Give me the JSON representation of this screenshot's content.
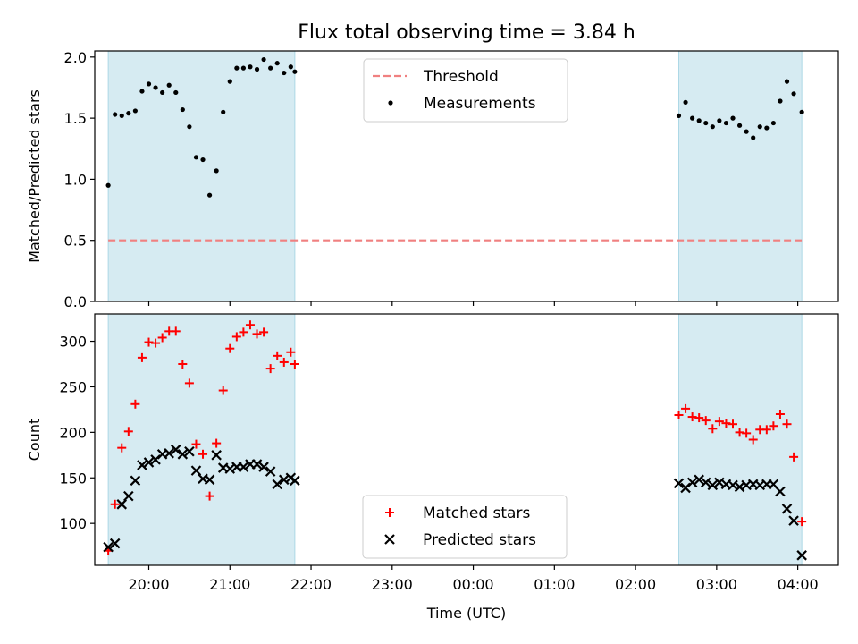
{
  "title": "Flux total observing time = 3.84 h",
  "colors": {
    "band": "#add8e6",
    "threshold": "#f08080",
    "measurement": "#000000",
    "matched": "#ff0000",
    "predicted": "#000000"
  },
  "chart_data": [
    {
      "type": "scatter",
      "panel": "top",
      "title": "",
      "xlabel": "",
      "ylabel": "Matched/Predicted stars",
      "xlim": [
        "19:20",
        "04:30"
      ],
      "ylim": [
        0,
        2.05
      ],
      "yticks": [
        0.0,
        0.5,
        1.0,
        1.5,
        2.0
      ],
      "ytick_labels": [
        "0.0",
        "0.5",
        "1.0",
        "1.5",
        "2.0"
      ],
      "grid": false,
      "legend": {
        "position": "top-center",
        "entries": [
          "Threshold",
          "Measurements"
        ]
      },
      "observing_windows": [
        [
          "19:30",
          "21:48"
        ],
        [
          "02:32",
          "04:03"
        ]
      ],
      "threshold": {
        "name": "Threshold",
        "value": 0.5,
        "x_range": [
          "19:30",
          "04:03"
        ]
      },
      "series": [
        {
          "name": "Measurements",
          "points": [
            [
              "19:30",
              0.95
            ],
            [
              "19:35",
              1.53
            ],
            [
              "19:40",
              1.52
            ],
            [
              "19:45",
              1.54
            ],
            [
              "19:50",
              1.56
            ],
            [
              "19:55",
              1.72
            ],
            [
              "20:00",
              1.78
            ],
            [
              "20:05",
              1.75
            ],
            [
              "20:10",
              1.71
            ],
            [
              "20:15",
              1.77
            ],
            [
              "20:20",
              1.71
            ],
            [
              "20:25",
              1.57
            ],
            [
              "20:30",
              1.43
            ],
            [
              "20:35",
              1.18
            ],
            [
              "20:40",
              1.16
            ],
            [
              "20:45",
              0.87
            ],
            [
              "20:50",
              1.07
            ],
            [
              "20:55",
              1.55
            ],
            [
              "21:00",
              1.8
            ],
            [
              "21:05",
              1.91
            ],
            [
              "21:10",
              1.91
            ],
            [
              "21:15",
              1.92
            ],
            [
              "21:20",
              1.9
            ],
            [
              "21:25",
              1.98
            ],
            [
              "21:30",
              1.91
            ],
            [
              "21:35",
              1.95
            ],
            [
              "21:40",
              1.87
            ],
            [
              "21:45",
              1.92
            ],
            [
              "21:48",
              1.88
            ],
            [
              "02:32",
              1.52
            ],
            [
              "02:37",
              1.63
            ],
            [
              "02:42",
              1.5
            ],
            [
              "02:47",
              1.48
            ],
            [
              "02:52",
              1.46
            ],
            [
              "02:57",
              1.43
            ],
            [
              "03:02",
              1.48
            ],
            [
              "03:07",
              1.46
            ],
            [
              "03:12",
              1.5
            ],
            [
              "03:17",
              1.44
            ],
            [
              "03:22",
              1.39
            ],
            [
              "03:27",
              1.34
            ],
            [
              "03:32",
              1.43
            ],
            [
              "03:37",
              1.42
            ],
            [
              "03:42",
              1.46
            ],
            [
              "03:47",
              1.64
            ],
            [
              "03:52",
              1.8
            ],
            [
              "03:57",
              1.7
            ],
            [
              "04:03",
              1.55
            ]
          ]
        }
      ]
    },
    {
      "type": "scatter",
      "panel": "bottom",
      "title": "",
      "xlabel": "Time (UTC)",
      "ylabel": "Count",
      "xlim": [
        "19:20",
        "04:30"
      ],
      "ylim": [
        54,
        330
      ],
      "yticks": [
        100,
        150,
        200,
        250,
        300
      ],
      "ytick_labels": [
        "100",
        "150",
        "200",
        "250",
        "300"
      ],
      "xticks": [
        "20:00",
        "21:00",
        "22:00",
        "23:00",
        "00:00",
        "01:00",
        "02:00",
        "03:00",
        "04:00"
      ],
      "grid": false,
      "legend": {
        "position": "bottom-center",
        "entries": [
          "Matched stars",
          "Predicted stars"
        ]
      },
      "observing_windows": [
        [
          "19:30",
          "21:48"
        ],
        [
          "02:32",
          "04:03"
        ]
      ],
      "series": [
        {
          "name": "Matched stars",
          "marker": "plus",
          "points": [
            [
              "19:30",
              70
            ],
            [
              "19:35",
              121
            ],
            [
              "19:40",
              183
            ],
            [
              "19:45",
              201
            ],
            [
              "19:50",
              231
            ],
            [
              "19:55",
              282
            ],
            [
              "20:00",
              299
            ],
            [
              "20:05",
              298
            ],
            [
              "20:10",
              304
            ],
            [
              "20:15",
              311
            ],
            [
              "20:20",
              311
            ],
            [
              "20:25",
              275
            ],
            [
              "20:30",
              254
            ],
            [
              "20:35",
              187
            ],
            [
              "20:40",
              176
            ],
            [
              "20:45",
              130
            ],
            [
              "20:50",
              188
            ],
            [
              "20:55",
              246
            ],
            [
              "21:00",
              292
            ],
            [
              "21:05",
              305
            ],
            [
              "21:10",
              310
            ],
            [
              "21:15",
              318
            ],
            [
              "21:20",
              308
            ],
            [
              "21:25",
              310
            ],
            [
              "21:30",
              270
            ],
            [
              "21:35",
              284
            ],
            [
              "21:40",
              277
            ],
            [
              "21:45",
              288
            ],
            [
              "21:48",
              275
            ],
            [
              "02:32",
              219
            ],
            [
              "02:37",
              226
            ],
            [
              "02:42",
              217
            ],
            [
              "02:47",
              216
            ],
            [
              "02:52",
              213
            ],
            [
              "02:57",
              204
            ],
            [
              "03:02",
              212
            ],
            [
              "03:07",
              210
            ],
            [
              "03:12",
              209
            ],
            [
              "03:17",
              200
            ],
            [
              "03:22",
              199
            ],
            [
              "03:27",
              192
            ],
            [
              "03:32",
              203
            ],
            [
              "03:37",
              203
            ],
            [
              "03:42",
              207
            ],
            [
              "03:47",
              220
            ],
            [
              "03:52",
              209
            ],
            [
              "03:57",
              173
            ],
            [
              "04:03",
              102
            ]
          ]
        },
        {
          "name": "Predicted stars",
          "marker": "x",
          "points": [
            [
              "19:30",
              74
            ],
            [
              "19:35",
              78
            ],
            [
              "19:40",
              121
            ],
            [
              "19:45",
              130
            ],
            [
              "19:50",
              147
            ],
            [
              "19:55",
              164
            ],
            [
              "20:00",
              167
            ],
            [
              "20:05",
              170
            ],
            [
              "20:10",
              176
            ],
            [
              "20:15",
              177
            ],
            [
              "20:20",
              181
            ],
            [
              "20:25",
              176
            ],
            [
              "20:30",
              179
            ],
            [
              "20:35",
              158
            ],
            [
              "20:40",
              149
            ],
            [
              "20:45",
              148
            ],
            [
              "20:50",
              175
            ],
            [
              "20:55",
              161
            ],
            [
              "21:00",
              160
            ],
            [
              "21:05",
              162
            ],
            [
              "21:10",
              162
            ],
            [
              "21:15",
              165
            ],
            [
              "21:20",
              165
            ],
            [
              "21:25",
              162
            ],
            [
              "21:30",
              157
            ],
            [
              "21:35",
              143
            ],
            [
              "21:40",
              148
            ],
            [
              "21:45",
              150
            ],
            [
              "21:48",
              147
            ],
            [
              "02:32",
              144
            ],
            [
              "02:37",
              139
            ],
            [
              "02:42",
              145
            ],
            [
              "02:47",
              148
            ],
            [
              "02:52",
              145
            ],
            [
              "02:57",
              142
            ],
            [
              "03:02",
              145
            ],
            [
              "03:07",
              143
            ],
            [
              "03:12",
              142
            ],
            [
              "03:17",
              140
            ],
            [
              "03:22",
              142
            ],
            [
              "03:27",
              143
            ],
            [
              "03:32",
              142
            ],
            [
              "03:37",
              143
            ],
            [
              "03:42",
              143
            ],
            [
              "03:47",
              135
            ],
            [
              "03:52",
              116
            ],
            [
              "03:57",
              103
            ],
            [
              "04:03",
              65
            ]
          ]
        }
      ]
    }
  ]
}
